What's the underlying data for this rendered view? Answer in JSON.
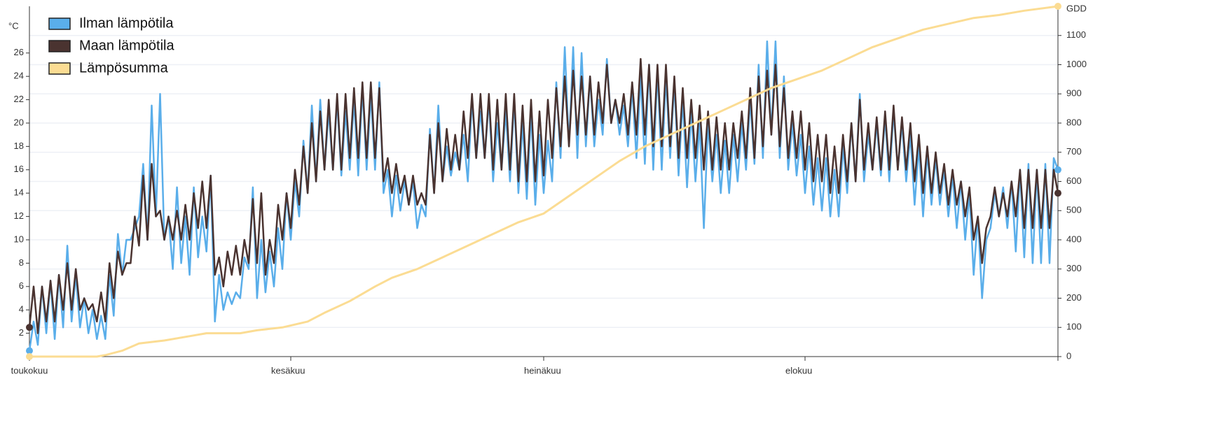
{
  "chart_data": {
    "type": "line",
    "y_label": "°C",
    "y2_label": "GDD",
    "x": [
      0,
      0.5,
      1,
      1.5,
      2,
      2.5,
      3,
      3.5,
      4,
      4.5,
      5,
      5.5,
      6,
      6.5,
      7,
      7.5,
      8,
      8.5,
      9,
      9.5,
      10,
      10.5,
      11,
      11.5,
      12,
      12.5,
      13,
      13.5,
      14,
      14.5,
      15,
      15.5,
      16,
      16.5,
      17,
      17.5,
      18,
      18.5,
      19,
      19.5,
      20,
      20.5,
      21,
      21.5,
      22,
      22.5,
      23,
      23.5,
      24,
      24.5,
      25,
      25.5,
      26,
      26.5,
      27,
      27.5,
      28,
      28.5,
      29,
      29.5,
      30,
      30.5,
      31,
      31.5,
      32,
      32.5,
      33,
      33.5,
      34,
      34.5,
      35,
      35.5,
      36,
      36.5,
      37,
      37.5,
      38,
      38.5,
      39,
      39.5,
      40,
      40.5,
      41,
      41.5,
      42,
      42.5,
      43,
      43.5,
      44,
      44.5,
      45,
      45.5,
      46,
      46.5,
      47,
      47.5,
      48,
      48.5,
      49,
      49.5,
      50,
      50.5,
      51,
      51.5,
      52,
      52.5,
      53,
      53.5,
      54,
      54.5,
      55,
      55.5,
      56,
      56.5,
      57,
      57.5,
      58,
      58.5,
      59,
      59.5,
      60,
      60.5,
      61,
      61.5,
      62,
      62.5,
      63,
      63.5,
      64,
      64.5,
      65,
      65.5,
      66,
      66.5,
      67,
      67.5,
      68,
      68.5,
      69,
      69.5,
      70,
      70.5,
      71,
      71.5,
      72,
      72.5,
      73,
      73.5,
      74,
      74.5,
      75,
      75.5,
      76,
      76.5,
      77,
      77.5,
      78,
      78.5,
      79,
      79.5,
      80,
      80.5,
      81,
      81.5,
      82,
      82.5,
      83,
      83.5,
      84,
      84.5,
      85,
      85.5,
      86,
      86.5,
      87,
      87.5,
      88,
      88.5,
      89,
      89.5,
      90,
      90.5,
      91,
      91.5,
      92,
      92.5,
      93,
      93.5,
      94,
      94.5,
      95,
      95.5,
      96,
      96.5,
      97,
      97.5,
      98,
      98.5,
      99,
      99.5,
      100,
      100.5,
      101,
      101.5,
      102,
      102.5,
      103,
      103.5,
      104,
      104.5,
      105,
      105.5,
      106,
      106.5,
      107,
      107.5,
      108,
      108.5,
      109,
      109.5,
      110,
      110.5,
      111,
      111.5,
      112,
      112.5,
      113,
      113.5,
      114,
      114.5,
      115,
      115.5,
      116,
      116.5,
      117,
      117.5,
      118,
      118.5,
      119,
      119.5,
      120,
      120.5,
      121,
      121.5,
      122
    ],
    "xlim": [
      0,
      122
    ],
    "xticks": [
      {
        "value": 0,
        "label": "toukokuu"
      },
      {
        "value": 31,
        "label": "kesäkuu"
      },
      {
        "value": 61,
        "label": "heinäkuu"
      },
      {
        "value": 92,
        "label": "elokuu"
      }
    ],
    "ylim": [
      0,
      30
    ],
    "yticks": [
      2,
      4,
      6,
      8,
      10,
      12,
      14,
      16,
      18,
      20,
      22,
      24,
      26
    ],
    "y2lim": [
      0,
      1200
    ],
    "y2ticks": [
      0,
      100,
      200,
      300,
      400,
      500,
      600,
      700,
      800,
      900,
      1000,
      1100
    ],
    "grid": true,
    "legend": "top-left",
    "series": [
      {
        "name": "Ilman lämpötila",
        "color": "#5aaeea",
        "values": [
          0.5,
          3,
          1,
          6,
          2,
          6.5,
          1.5,
          7,
          2.5,
          9.5,
          3,
          7,
          2.5,
          5,
          2,
          4,
          1.5,
          3.5,
          1.5,
          7,
          3.5,
          10.5,
          7,
          10,
          10,
          11,
          12,
          16.5,
          10,
          21.5,
          12,
          22.5,
          10,
          12,
          7.5,
          14.5,
          8,
          12,
          7,
          14.5,
          8.5,
          12,
          9,
          15.5,
          3,
          7,
          4,
          5.5,
          4.5,
          5.5,
          5,
          8.5,
          7.5,
          14.5,
          5,
          10,
          5.5,
          9,
          6,
          11,
          7.5,
          14,
          10,
          15,
          12,
          18.5,
          14,
          21.5,
          15,
          22,
          16,
          21,
          16,
          22,
          15.5,
          21,
          16,
          22,
          15.5,
          23,
          16,
          22.5,
          16,
          23.5,
          14,
          16,
          12,
          15.5,
          12.5,
          15,
          13,
          15,
          11,
          13,
          12,
          19.5,
          14,
          21.5,
          15,
          18,
          15.5,
          17.5,
          16,
          19,
          15,
          22,
          17,
          21,
          17,
          22,
          15,
          20,
          16,
          21,
          15,
          22,
          14,
          20,
          13.5,
          21,
          13,
          19,
          14,
          18.5,
          15,
          23.5,
          17,
          26.5,
          18,
          26.5,
          17,
          26,
          18,
          24,
          18,
          22,
          19,
          25.5,
          20,
          22,
          19,
          21.5,
          18,
          23,
          17,
          24,
          16.5,
          25,
          16,
          24.5,
          16,
          24,
          17,
          23.5,
          15.5,
          22,
          14.5,
          21,
          15,
          20,
          11,
          20,
          15,
          19,
          14,
          18.5,
          14,
          19,
          15,
          20,
          16,
          22,
          16.5,
          25,
          17,
          27,
          19,
          27,
          17,
          24,
          16,
          20,
          15.5,
          19,
          14,
          18,
          13,
          17,
          12.5,
          17,
          12,
          16,
          12,
          18,
          14,
          20,
          15,
          22.5,
          15,
          19,
          16,
          20,
          15.5,
          20.5,
          15,
          21,
          16,
          20,
          15,
          19,
          13,
          18,
          12,
          17.5,
          13,
          17,
          13,
          16,
          12,
          15.5,
          11,
          15,
          10,
          14,
          7,
          12,
          5,
          10,
          11,
          14,
          12,
          14.5,
          11,
          15,
          9,
          16,
          8.5,
          16.5,
          8,
          16,
          8,
          16.5,
          8,
          17,
          16
        ]
      },
      {
        "name": "Maan lämpötila",
        "color": "#4a3330",
        "values": [
          2.5,
          6,
          2,
          6,
          3,
          6.5,
          3,
          7,
          4,
          8,
          4,
          7.5,
          4,
          5,
          4,
          4.5,
          3,
          5.5,
          3,
          8,
          5,
          9,
          7,
          8,
          8,
          12,
          9.5,
          15.5,
          10,
          16.5,
          12,
          12.5,
          10,
          12,
          10,
          12.5,
          10,
          13,
          10,
          14,
          11,
          15,
          11,
          15.5,
          7,
          8.5,
          6,
          9,
          7,
          9.5,
          7,
          10,
          8,
          13.5,
          8,
          14,
          7,
          10,
          8,
          13,
          10,
          14,
          11,
          16,
          13,
          18,
          14,
          20,
          15,
          21,
          16,
          22,
          16,
          22.5,
          16,
          22.5,
          17,
          23,
          17,
          23.5,
          17,
          23.5,
          17,
          23,
          15,
          17,
          14,
          16.5,
          14,
          15.5,
          13,
          15.5,
          13,
          14,
          13,
          19,
          14,
          20,
          15,
          19.5,
          16,
          19,
          16,
          21,
          17,
          22.5,
          17,
          22.5,
          17,
          22.5,
          16,
          22,
          16,
          22.5,
          16,
          22.5,
          15,
          21.5,
          15,
          22,
          15,
          21,
          15.5,
          22,
          17,
          23,
          18,
          24,
          18,
          24.5,
          19,
          24,
          19,
          24,
          19,
          23.5,
          20,
          25,
          20,
          22,
          20,
          22.5,
          19,
          23.5,
          19,
          25.5,
          19,
          25,
          18,
          25,
          18,
          25,
          18,
          24,
          17,
          23,
          17,
          22,
          17,
          21.5,
          16,
          21,
          16,
          20.5,
          16,
          20,
          16,
          20,
          17,
          21,
          17,
          23,
          17,
          24,
          18,
          24.5,
          19,
          25,
          18,
          23,
          17,
          21,
          17,
          21,
          16,
          20,
          15,
          19,
          15,
          19,
          14,
          18,
          14,
          19,
          15,
          20,
          15,
          22,
          16,
          20,
          16,
          20.5,
          16,
          21,
          16,
          21.5,
          16,
          20.5,
          16,
          20,
          15,
          19,
          14,
          18,
          14,
          17.5,
          14,
          16.5,
          13,
          16,
          13,
          15,
          12,
          14.5,
          10,
          12,
          8,
          11,
          12,
          14.5,
          12,
          14,
          12,
          15,
          12,
          16,
          11,
          16,
          11,
          16,
          11,
          16,
          11,
          16,
          14
        ]
      },
      {
        "name": "Lämpösumma",
        "color": "#fbdc93",
        "axis": "y2",
        "x": [
          0,
          8,
          9,
          11,
          13,
          16,
          19,
          21,
          25,
          27,
          30,
          33,
          35,
          38,
          41,
          43,
          46,
          49,
          52,
          55,
          58,
          61,
          64,
          67,
          70,
          73,
          76,
          79,
          82,
          85,
          88,
          91,
          94,
          97,
          100,
          103,
          106,
          109,
          112,
          115,
          118,
          122
        ],
        "values": [
          0,
          0,
          5,
          20,
          45,
          55,
          70,
          80,
          80,
          90,
          100,
          120,
          150,
          190,
          240,
          270,
          300,
          340,
          380,
          420,
          460,
          490,
          550,
          610,
          670,
          720,
          760,
          800,
          840,
          880,
          920,
          950,
          980,
          1020,
          1060,
          1090,
          1120,
          1140,
          1160,
          1170,
          1185,
          1200
        ]
      }
    ]
  }
}
